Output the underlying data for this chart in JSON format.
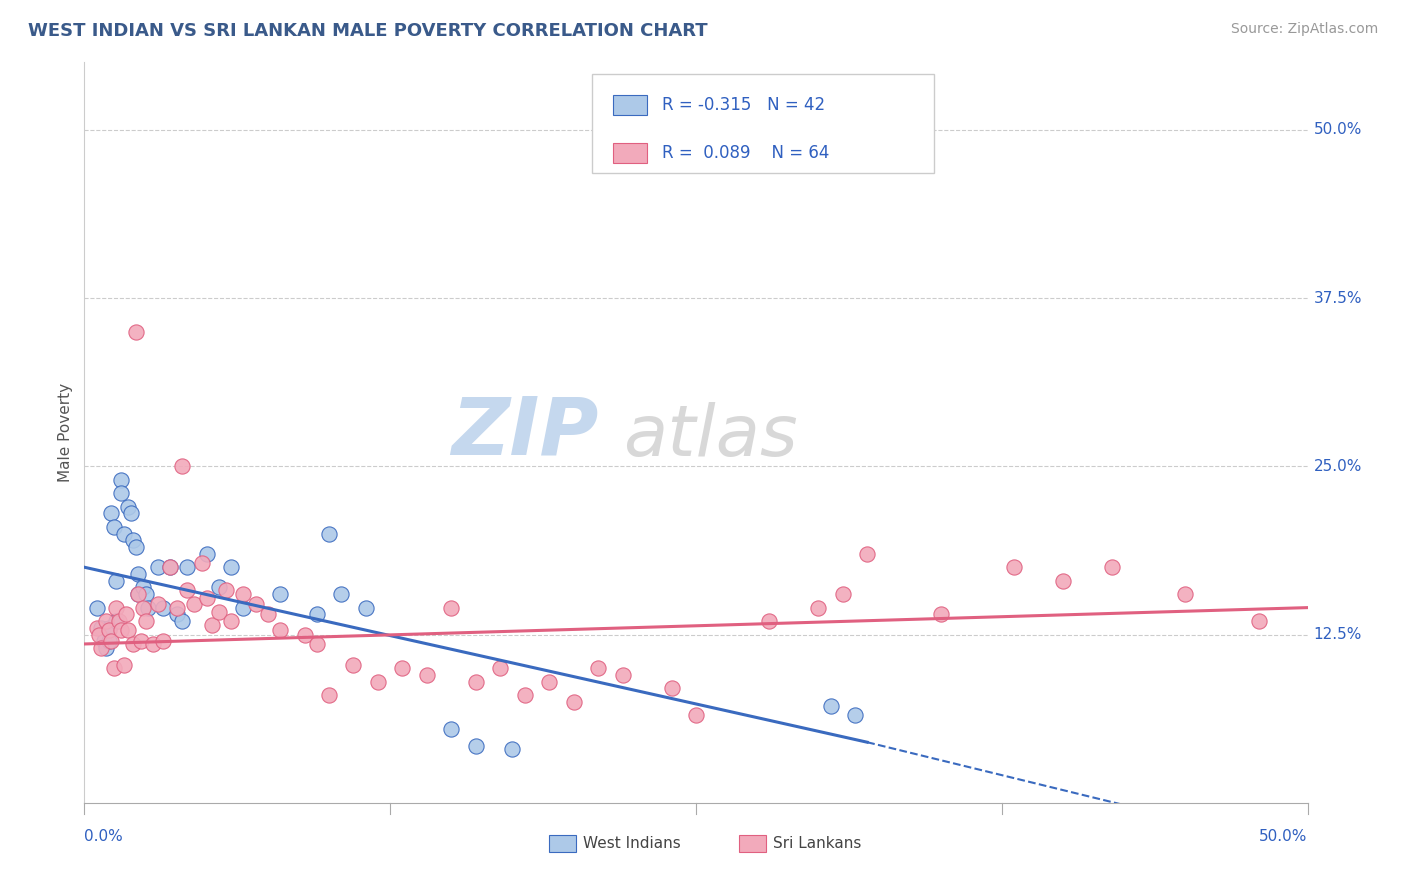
{
  "title": "WEST INDIAN VS SRI LANKAN MALE POVERTY CORRELATION CHART",
  "source": "Source: ZipAtlas.com",
  "ylabel": "Male Poverty",
  "ylabel_right_labels": [
    "50.0%",
    "37.5%",
    "25.0%",
    "12.5%"
  ],
  "ylabel_right_values": [
    0.5,
    0.375,
    0.25,
    0.125
  ],
  "xlim": [
    0.0,
    0.5
  ],
  "ylim": [
    0.0,
    0.55
  ],
  "title_color": "#3a5a8a",
  "source_color": "#999999",
  "background_color": "#ffffff",
  "grid_color": "#cccccc",
  "west_indian_color": "#adc9e8",
  "sri_lankan_color": "#f2aabb",
  "west_indian_line_color": "#3a6abf",
  "sri_lankan_line_color": "#e06080",
  "legend_box_blue": "#adc9e8",
  "legend_box_pink": "#f2aabb",
  "R_west_indian": -0.315,
  "N_west_indian": 42,
  "R_sri_lankan": 0.089,
  "N_sri_lankan": 64,
  "wi_line_x0": 0.0,
  "wi_line_y0": 0.175,
  "wi_line_x1": 0.32,
  "wi_line_y1": 0.045,
  "wi_line_xdash": 0.5,
  "wi_line_ydash": -0.035,
  "sl_line_x0": 0.0,
  "sl_line_y0": 0.118,
  "sl_line_x1": 0.5,
  "sl_line_y1": 0.145,
  "west_indian_x": [
    0.005,
    0.007,
    0.008,
    0.009,
    0.01,
    0.01,
    0.011,
    0.012,
    0.013,
    0.013,
    0.015,
    0.015,
    0.016,
    0.018,
    0.019,
    0.02,
    0.021,
    0.022,
    0.022,
    0.024,
    0.025,
    0.026,
    0.03,
    0.032,
    0.035,
    0.038,
    0.04,
    0.042,
    0.05,
    0.055,
    0.06,
    0.065,
    0.08,
    0.095,
    0.1,
    0.105,
    0.115,
    0.15,
    0.16,
    0.175,
    0.305,
    0.315
  ],
  "west_indian_y": [
    0.145,
    0.13,
    0.12,
    0.115,
    0.13,
    0.12,
    0.215,
    0.205,
    0.135,
    0.165,
    0.24,
    0.23,
    0.2,
    0.22,
    0.215,
    0.195,
    0.19,
    0.17,
    0.155,
    0.16,
    0.155,
    0.145,
    0.175,
    0.145,
    0.175,
    0.14,
    0.135,
    0.175,
    0.185,
    0.16,
    0.175,
    0.145,
    0.155,
    0.14,
    0.2,
    0.155,
    0.145,
    0.055,
    0.042,
    0.04,
    0.072,
    0.065
  ],
  "sri_lankan_x": [
    0.005,
    0.006,
    0.007,
    0.009,
    0.01,
    0.011,
    0.012,
    0.013,
    0.014,
    0.015,
    0.016,
    0.017,
    0.018,
    0.02,
    0.021,
    0.022,
    0.023,
    0.024,
    0.025,
    0.028,
    0.03,
    0.032,
    0.035,
    0.038,
    0.04,
    0.042,
    0.045,
    0.048,
    0.05,
    0.052,
    0.055,
    0.058,
    0.06,
    0.065,
    0.07,
    0.075,
    0.08,
    0.09,
    0.095,
    0.1,
    0.11,
    0.12,
    0.13,
    0.14,
    0.15,
    0.16,
    0.17,
    0.18,
    0.19,
    0.2,
    0.21,
    0.22,
    0.24,
    0.25,
    0.28,
    0.3,
    0.31,
    0.32,
    0.35,
    0.38,
    0.4,
    0.42,
    0.45,
    0.48
  ],
  "sri_lankan_y": [
    0.13,
    0.125,
    0.115,
    0.135,
    0.128,
    0.12,
    0.1,
    0.145,
    0.135,
    0.128,
    0.102,
    0.14,
    0.128,
    0.118,
    0.35,
    0.155,
    0.12,
    0.145,
    0.135,
    0.118,
    0.148,
    0.12,
    0.175,
    0.145,
    0.25,
    0.158,
    0.148,
    0.178,
    0.152,
    0.132,
    0.142,
    0.158,
    0.135,
    0.155,
    0.148,
    0.14,
    0.128,
    0.125,
    0.118,
    0.08,
    0.102,
    0.09,
    0.1,
    0.095,
    0.145,
    0.09,
    0.1,
    0.08,
    0.09,
    0.075,
    0.1,
    0.095,
    0.085,
    0.065,
    0.135,
    0.145,
    0.155,
    0.185,
    0.14,
    0.175,
    0.165,
    0.175,
    0.155,
    0.135
  ],
  "watermark_zip_color": "#c5d8ee",
  "watermark_atlas_color": "#c8c8c8",
  "legend_text_color": "#3060c0",
  "axis_label_color": "#3060c0",
  "bottom_label_color": "#444444"
}
